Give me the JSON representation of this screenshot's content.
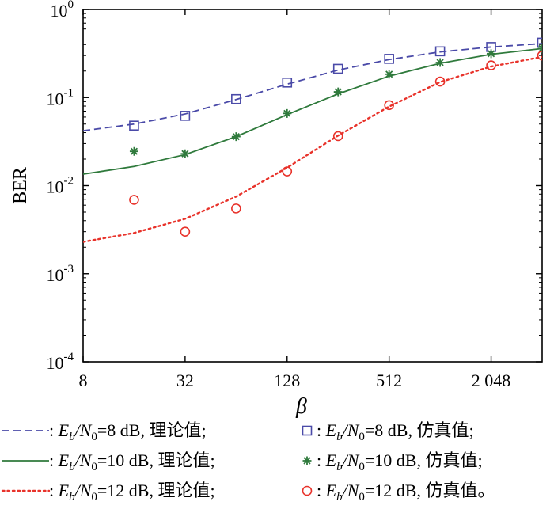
{
  "chart_data": {
    "type": "line",
    "ylabel": "BER",
    "xlabel": "β",
    "x_scale": "log2",
    "y_scale": "log10",
    "xlim": [
      8,
      4096
    ],
    "ylim": [
      0.0001,
      1
    ],
    "x_ticks": [
      8,
      32,
      128,
      512,
      2048
    ],
    "x_tick_labels": [
      "8",
      "32",
      "128",
      "512",
      "2 048"
    ],
    "y_ticks": [
      {
        "value": 1,
        "base": "10",
        "exp": "0"
      },
      {
        "value": 0.1,
        "base": "10",
        "exp": "-1"
      },
      {
        "value": 0.01,
        "base": "10",
        "exp": "-2"
      },
      {
        "value": 0.001,
        "base": "10",
        "exp": "-3"
      },
      {
        "value": 0.0001,
        "base": "10",
        "exp": "-4"
      }
    ],
    "grid": false,
    "legend_position": "bottom",
    "series": [
      {
        "key": "theory-8",
        "kind": "line",
        "style": "dashed",
        "color": "#4a4aa8",
        "legend": {
          "e": "E",
          "b": "b",
          "slash": "/N",
          "zero": "0",
          "value": "=8 dB, 理论值;"
        },
        "x": [
          8,
          16,
          32,
          64,
          128,
          256,
          512,
          1024,
          2048,
          4096
        ],
        "y": [
          0.042,
          0.05,
          0.065,
          0.095,
          0.142,
          0.205,
          0.27,
          0.33,
          0.375,
          0.41
        ]
      },
      {
        "key": "sim-8",
        "kind": "marker",
        "marker": "square",
        "color": "#4a4aa8",
        "legend": {
          "e": "E",
          "b": "b",
          "slash": "/N",
          "zero": "0",
          "value": "=8 dB, 仿真值;"
        },
        "x": [
          16,
          32,
          64,
          128,
          256,
          512,
          1024,
          2048,
          4096
        ],
        "y": [
          0.048,
          0.062,
          0.096,
          0.148,
          0.212,
          0.275,
          0.335,
          0.375,
          0.42
        ]
      },
      {
        "key": "theory-10",
        "kind": "line",
        "style": "solid",
        "color": "#2f7a3c",
        "legend": {
          "e": "E",
          "b": "b",
          "slash": "/N",
          "zero": "0",
          "value": "=10 dB, 理论值;"
        },
        "x": [
          8,
          16,
          32,
          64,
          128,
          256,
          512,
          1024,
          2048,
          4096
        ],
        "y": [
          0.0135,
          0.0165,
          0.0225,
          0.036,
          0.064,
          0.11,
          0.175,
          0.245,
          0.31,
          0.36
        ]
      },
      {
        "key": "sim-10",
        "kind": "marker",
        "marker": "star",
        "color": "#2f7a3c",
        "legend": {
          "e": "E",
          "b": "b",
          "slash": "/N",
          "zero": "0",
          "value": "=10 dB, 仿真值;"
        },
        "x": [
          16,
          32,
          64,
          128,
          256,
          512,
          1024,
          2048,
          4096
        ],
        "y": [
          0.0245,
          0.023,
          0.036,
          0.066,
          0.116,
          0.184,
          0.25,
          0.315,
          0.36
        ]
      },
      {
        "key": "theory-12",
        "kind": "line",
        "style": "dotted",
        "color": "#e8322a",
        "legend": {
          "e": "E",
          "b": "b",
          "slash": "/N",
          "zero": "0",
          "value": "=12 dB, 理论值;"
        },
        "x": [
          8,
          16,
          32,
          64,
          128,
          256,
          512,
          1024,
          2048,
          4096
        ],
        "y": [
          0.0023,
          0.0029,
          0.0042,
          0.0075,
          0.016,
          0.037,
          0.079,
          0.15,
          0.225,
          0.29
        ]
      },
      {
        "key": "sim-12",
        "kind": "marker",
        "marker": "circle",
        "color": "#e8322a",
        "legend": {
          "e": "E",
          "b": "b",
          "slash": "/N",
          "zero": "0",
          "value": "=12 dB, 仿真值。"
        },
        "x": [
          16,
          32,
          64,
          128,
          256,
          512,
          1024,
          2048,
          4096
        ],
        "y": [
          0.0069,
          0.003,
          0.0055,
          0.0145,
          0.0365,
          0.082,
          0.152,
          0.232,
          0.3
        ]
      }
    ]
  }
}
